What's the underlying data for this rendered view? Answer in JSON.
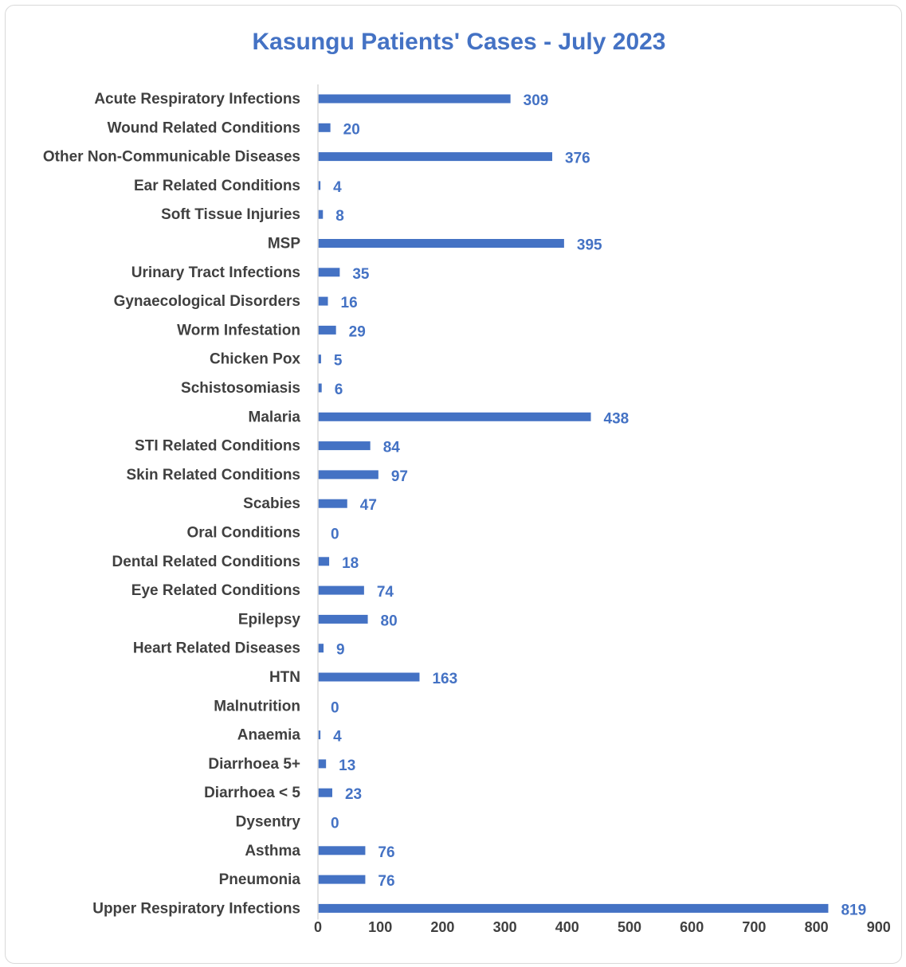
{
  "chart_data": {
    "type": "bar",
    "orientation": "horizontal",
    "title": "Kasungu Patients' Cases - July 2023",
    "xlim": [
      0,
      900
    ],
    "x_ticks": [
      "0",
      "100",
      "200",
      "300",
      "400",
      "500",
      "600",
      "700",
      "800",
      "900"
    ],
    "grid": false,
    "legend": "none",
    "categories": [
      "Acute Respiratory Infections",
      "Wound Related Conditions",
      "Other Non-Communicable Diseases",
      "Ear Related Conditions",
      "Soft Tissue Injuries",
      "MSP",
      "Urinary Tract Infections",
      "Gynaecological Disorders",
      "Worm Infestation",
      "Chicken Pox",
      "Schistosomiasis",
      "Malaria",
      "STI Related Conditions",
      "Skin Related Conditions",
      "Scabies",
      "Oral Conditions",
      "Dental Related Conditions",
      "Eye Related Conditions",
      "Epilepsy",
      "Heart Related Diseases",
      "HTN",
      "Malnutrition",
      "Anaemia",
      "Diarrhoea 5+",
      "Diarrhoea < 5",
      "Dysentry",
      "Asthma",
      "Pneumonia",
      "Upper Respiratory Infections"
    ],
    "values": [
      309,
      20,
      376,
      4,
      8,
      395,
      35,
      16,
      29,
      5,
      6,
      438,
      84,
      97,
      47,
      0,
      18,
      74,
      80,
      9,
      163,
      0,
      4,
      13,
      23,
      0,
      76,
      76,
      819
    ],
    "value_labels": [
      "309",
      "20",
      "376",
      "4",
      "8",
      "395",
      "35",
      "16",
      "29",
      "5",
      "6",
      "438",
      "84",
      "97",
      "47",
      "0",
      "18",
      "74",
      "80",
      "9",
      "163",
      "0",
      "4",
      "13",
      "23",
      "0",
      "76",
      "76",
      "819"
    ]
  },
  "colors": {
    "bar": "#4472C4",
    "title": "#4472C4",
    "value_label": "#4472C4",
    "axis_line": "#d9d9d9",
    "text": "#404040"
  }
}
